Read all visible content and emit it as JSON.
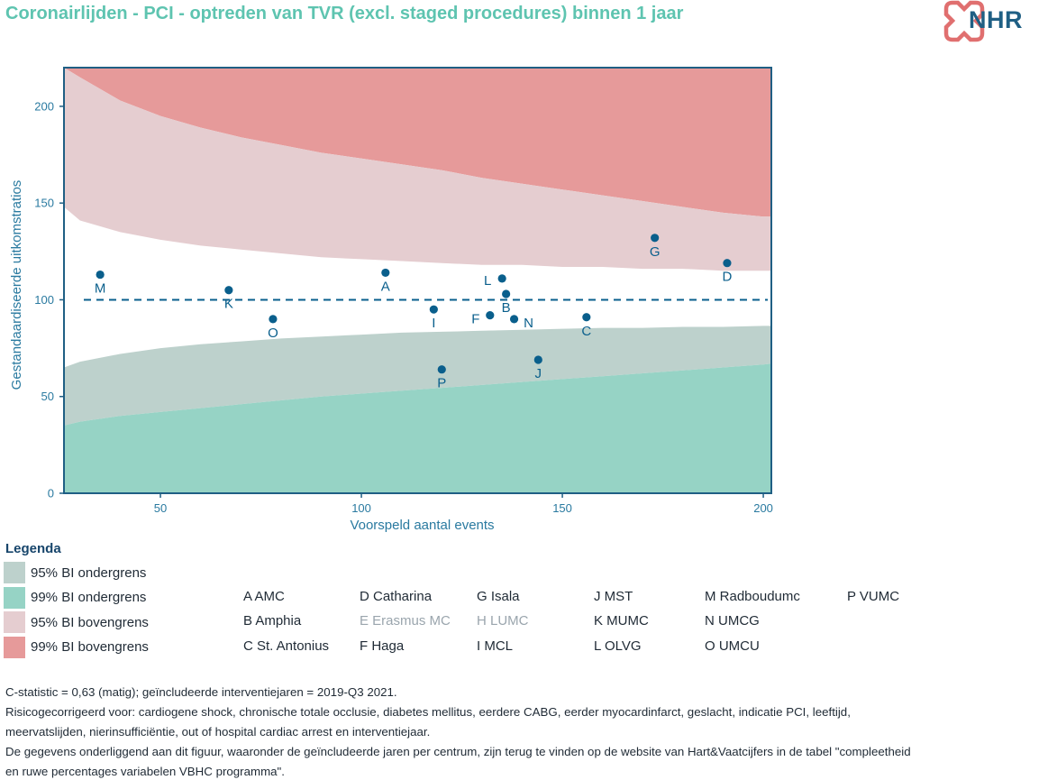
{
  "title": "Coronairlijden - PCI - optreden van TVR (excl. staged procedures) binnen 1 jaar",
  "logo": {
    "text": "NHR",
    "icon": "heart-cross-logo"
  },
  "colors": {
    "band_99_upper": "#e69a9a",
    "band_95_upper": "#e5cdd0",
    "band_95_lower": "#bdd1cc",
    "band_99_lower": "#96d3c5",
    "points": "#0a5f8c",
    "axis": "#1f5f84",
    "axis_text": "#2a7aa0"
  },
  "chart_data": {
    "type": "scatter",
    "xlabel": "Voorspeld aantal events",
    "ylabel": "Gestandaardiseerde uitkomstratios",
    "xlim": [
      26,
      202
    ],
    "ylim": [
      0,
      220
    ],
    "xticks": [
      "50",
      "100",
      "150",
      "200"
    ],
    "yticks": [
      "0",
      "50",
      "100",
      "150",
      "200"
    ],
    "reference_line": 100,
    "points": [
      {
        "label": "M",
        "x": 35,
        "y": 113
      },
      {
        "label": "K",
        "x": 67,
        "y": 105
      },
      {
        "label": "O",
        "x": 78,
        "y": 90
      },
      {
        "label": "A",
        "x": 106,
        "y": 114
      },
      {
        "label": "I",
        "x": 118,
        "y": 95
      },
      {
        "label": "P",
        "x": 120,
        "y": 64
      },
      {
        "label": "F",
        "x": 132,
        "y": 92
      },
      {
        "label": "L",
        "x": 135,
        "y": 111
      },
      {
        "label": "B",
        "x": 136,
        "y": 103
      },
      {
        "label": "N",
        "x": 138,
        "y": 90
      },
      {
        "label": "J",
        "x": 144,
        "y": 69
      },
      {
        "label": "C",
        "x": 156,
        "y": 91
      },
      {
        "label": "G",
        "x": 173,
        "y": 132
      },
      {
        "label": "D",
        "x": 191,
        "y": 119
      }
    ],
    "bands": {
      "x": [
        26,
        30,
        40,
        50,
        60,
        70,
        80,
        90,
        100,
        110,
        120,
        130,
        140,
        150,
        160,
        170,
        180,
        190,
        200,
        202
      ],
      "upper_99": [
        220,
        215,
        203,
        195,
        189,
        184,
        180,
        176,
        173,
        170,
        167,
        163,
        160,
        157,
        154,
        151,
        148,
        145,
        143,
        143
      ],
      "upper_95": [
        148,
        141,
        135,
        131,
        128,
        126,
        124,
        122,
        121,
        120,
        119,
        118,
        118,
        117,
        117,
        116,
        116,
        115,
        115,
        115
      ],
      "lower_95": [
        65,
        68,
        72,
        75,
        77,
        78.5,
        80,
        81,
        82,
        83,
        83.5,
        84,
        84.5,
        85,
        85.5,
        85.5,
        86,
        86,
        86.5,
        86.5
      ],
      "lower_99": [
        35,
        37,
        40,
        42,
        44,
        46,
        48,
        50,
        51.5,
        53,
        54.5,
        56,
        57.5,
        59,
        60.5,
        62,
        63.5,
        65,
        66.5,
        67
      ]
    }
  },
  "legend": {
    "heading": "Legenda",
    "bands": [
      {
        "label": "95% BI ondergrens",
        "color": "#bdd1cc"
      },
      {
        "label": "99% BI ondergrens",
        "color": "#96d3c5"
      },
      {
        "label": "95% BI bovengrens",
        "color": "#e5cdd0"
      },
      {
        "label": "99% BI bovengrens",
        "color": "#e69a9a"
      }
    ],
    "centres": [
      {
        "text": "A AMC",
        "col": 0,
        "row": 0,
        "muted": false
      },
      {
        "text": "B Amphia",
        "col": 0,
        "row": 1,
        "muted": false
      },
      {
        "text": "C St. Antonius",
        "col": 0,
        "row": 2,
        "muted": false
      },
      {
        "text": "D Catharina",
        "col": 1,
        "row": 0,
        "muted": false
      },
      {
        "text": "E Erasmus MC",
        "col": 1,
        "row": 1,
        "muted": true
      },
      {
        "text": "F Haga",
        "col": 1,
        "row": 2,
        "muted": false
      },
      {
        "text": "G Isala",
        "col": 2,
        "row": 0,
        "muted": false
      },
      {
        "text": "H LUMC",
        "col": 2,
        "row": 1,
        "muted": true
      },
      {
        "text": "I MCL",
        "col": 2,
        "row": 2,
        "muted": false
      },
      {
        "text": "J MST",
        "col": 3,
        "row": 0,
        "muted": false
      },
      {
        "text": "K MUMC",
        "col": 3,
        "row": 1,
        "muted": false
      },
      {
        "text": "L OLVG",
        "col": 3,
        "row": 2,
        "muted": false
      },
      {
        "text": "M Radboudumc",
        "col": 4,
        "row": 0,
        "muted": false
      },
      {
        "text": "N UMCG",
        "col": 4,
        "row": 1,
        "muted": false
      },
      {
        "text": "O UMCU",
        "col": 4,
        "row": 2,
        "muted": false
      },
      {
        "text": "P VUMC",
        "col": 5,
        "row": 0,
        "muted": false
      }
    ]
  },
  "footnotes": {
    "line1": "C-statistic =  0,63 (matig); geïncludeerde interventiejaren = 2019-Q3 2021.",
    "line2": "Risicogecorrigeerd voor: cardiogene shock, chronische totale occlusie, diabetes mellitus, eerdere CABG, eerder myocardinfarct, geslacht, indicatie PCI, leeftijd,",
    "line3": "meervatslijden, nierinsufficiëntie, out of hospital cardiac arrest en interventiejaar.",
    "line4": "De gegevens onderliggend aan dit figuur, waaronder de geïncludeerde jaren per centrum, zijn terug te vinden op de website van Hart&Vaatcijfers in de tabel \"compleetheid",
    "line5": "en ruwe percentages variabelen VBHC programma\"."
  }
}
